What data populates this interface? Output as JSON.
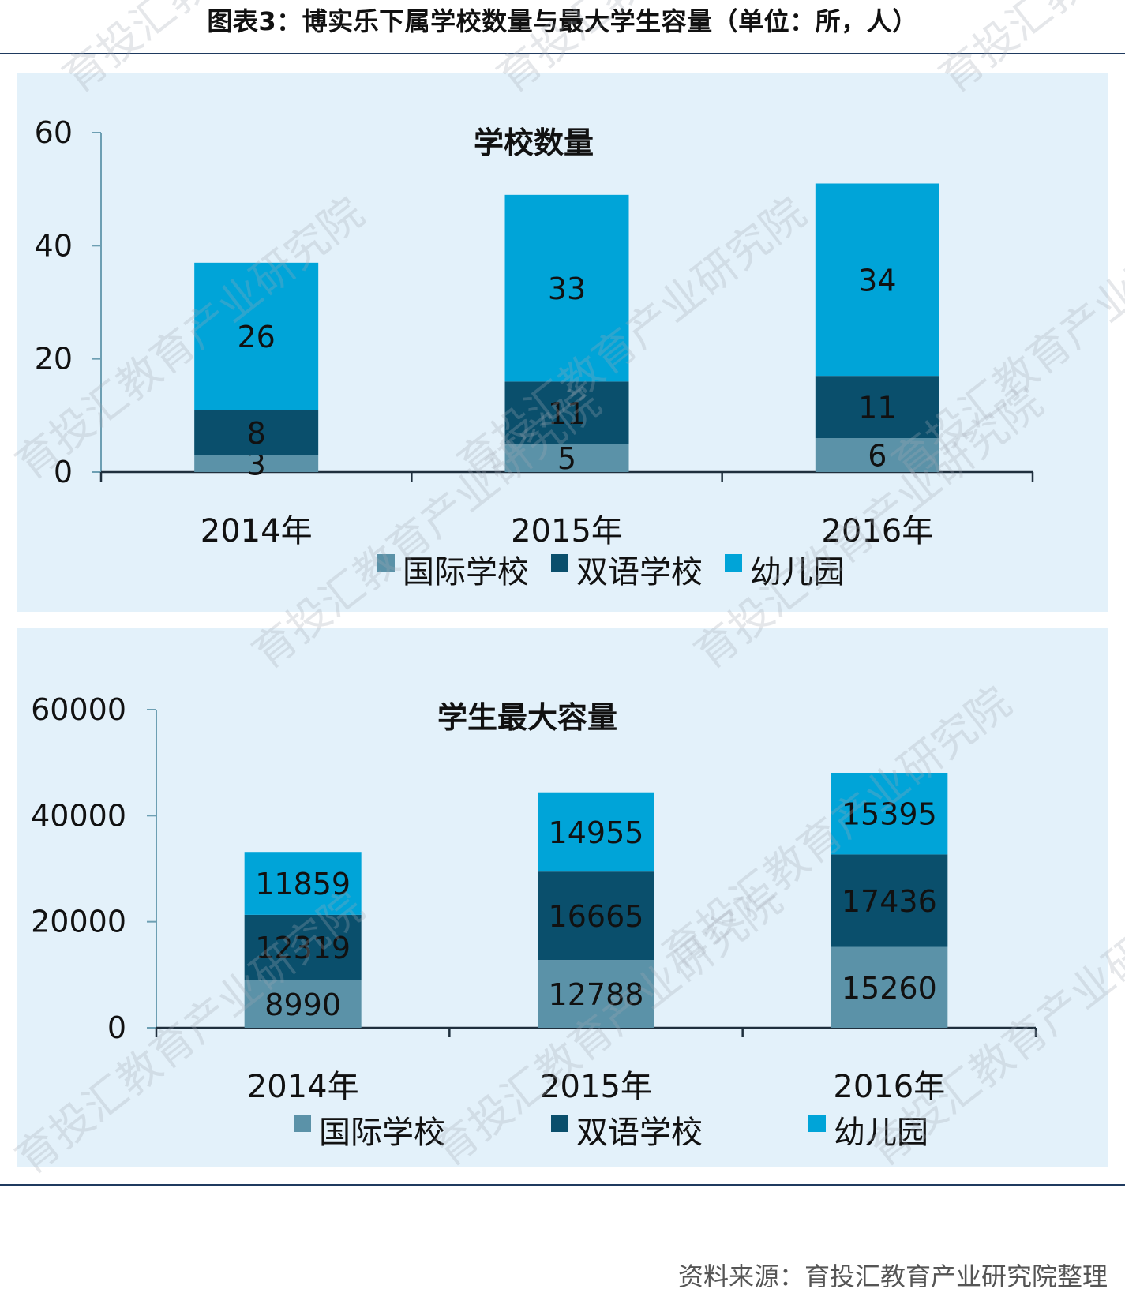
{
  "figure_title": "图表3：博实乐下属学校数量与最大学生容量（单位：所，人）",
  "source": "资料来源：育投汇教育产业研究院整理",
  "watermark": "育投汇教育产业研究院",
  "colors": {
    "国际学校": "#5b92a8",
    "双语学校": "#0a4f6c",
    "幼儿园": "#00a4d8",
    "panel_bg": "#e3f1fa"
  },
  "chart_data": [
    {
      "type": "bar",
      "stacked": true,
      "title": "学校数量",
      "categories": [
        "2014年",
        "2015年",
        "2016年"
      ],
      "series": [
        {
          "name": "国际学校",
          "values": [
            3,
            5,
            6
          ]
        },
        {
          "name": "双语学校",
          "values": [
            8,
            11,
            11
          ]
        },
        {
          "name": "幼儿园",
          "values": [
            26,
            33,
            34
          ]
        }
      ],
      "ylim": [
        0,
        60
      ],
      "yticks": [
        0,
        20,
        40,
        60
      ],
      "legend": "bottom",
      "grid": false
    },
    {
      "type": "bar",
      "stacked": true,
      "title": "学生最大容量",
      "categories": [
        "2014年",
        "2015年",
        "2016年"
      ],
      "series": [
        {
          "name": "国际学校",
          "values": [
            8990,
            12788,
            15260
          ]
        },
        {
          "name": "双语学校",
          "values": [
            12319,
            16665,
            17436
          ]
        },
        {
          "name": "幼儿园",
          "values": [
            11859,
            14955,
            15395
          ]
        }
      ],
      "ylim": [
        0,
        60000
      ],
      "yticks": [
        0,
        20000,
        40000,
        60000
      ],
      "legend": "bottom",
      "grid": false
    }
  ]
}
